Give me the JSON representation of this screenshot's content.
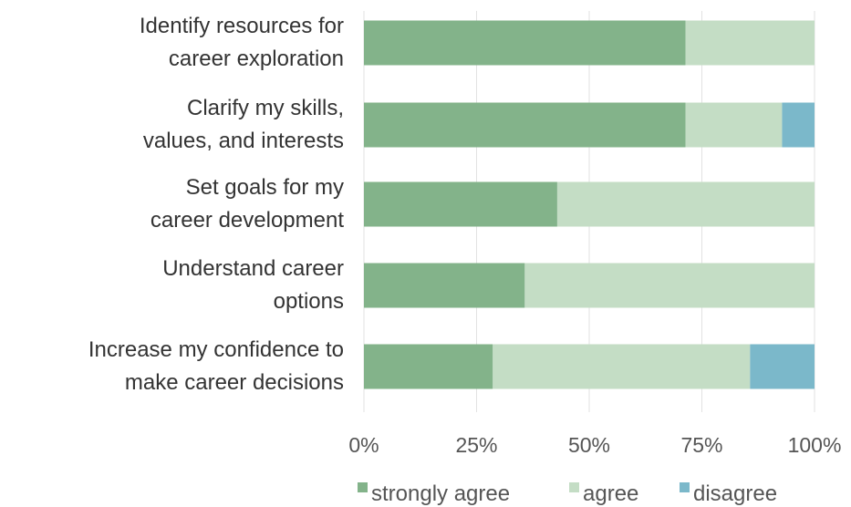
{
  "chart_data": {
    "type": "bar",
    "orientation": "horizontal",
    "stacked": true,
    "categories": [
      [
        "Identify resources for",
        "career exploration"
      ],
      [
        "Clarify my skills,",
        "values, and interests"
      ],
      [
        "Set goals for my",
        "career development"
      ],
      [
        "Understand career",
        "options"
      ],
      [
        "Increase my confidence to",
        "make career decisions"
      ]
    ],
    "series": [
      {
        "name": "strongly agree",
        "color": "#83b38a",
        "values": [
          71.4,
          71.4,
          42.9,
          35.7,
          28.6
        ]
      },
      {
        "name": "agree",
        "color": "#c4ddc5",
        "values": [
          28.6,
          21.4,
          57.1,
          64.3,
          57.1
        ]
      },
      {
        "name": "disagree",
        "color": "#7bb8ca",
        "values": [
          0,
          7.2,
          0,
          0,
          14.3
        ]
      }
    ],
    "xlim": [
      0,
      100
    ],
    "xticks": [
      "0%",
      "25%",
      "50%",
      "75%",
      "100%"
    ],
    "grid": true,
    "legend": "bottom"
  }
}
